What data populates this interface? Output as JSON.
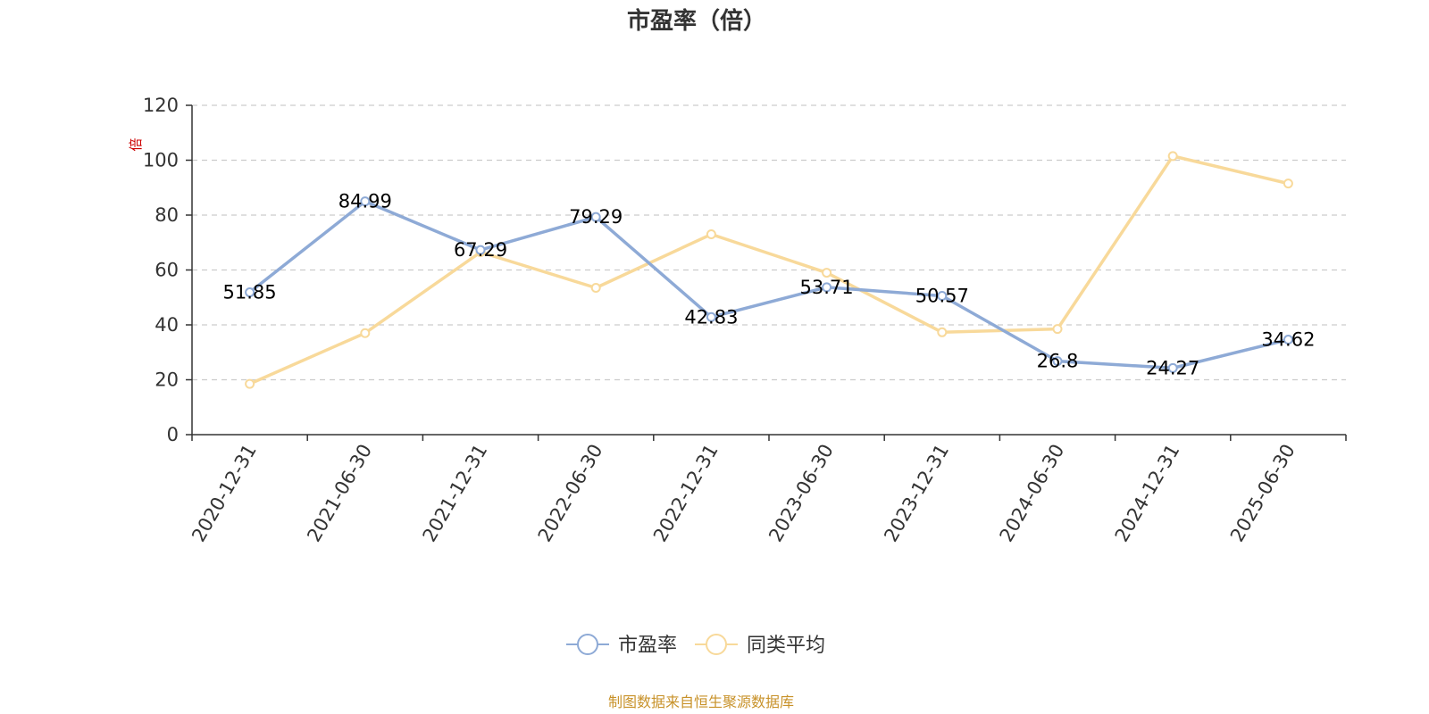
{
  "chart_data": {
    "type": "line",
    "title": "市盈率（倍）",
    "unit": "倍",
    "categories": [
      "2020-12-31",
      "2021-06-30",
      "2021-12-31",
      "2022-06-30",
      "2022-12-31",
      "2023-06-30",
      "2023-12-31",
      "2024-06-30",
      "2024-12-31",
      "2025-06-30"
    ],
    "ylim": [
      0,
      120
    ],
    "yticks": [
      0,
      20,
      40,
      60,
      80,
      100,
      120
    ],
    "grid": true,
    "legend_position": "bottom-center",
    "series": [
      {
        "name": "市盈率",
        "color": "#8eaad6",
        "values": [
          51.85,
          84.99,
          67.29,
          79.29,
          42.83,
          53.71,
          50.57,
          26.8,
          24.27,
          34.62
        ],
        "labels": [
          "51.85",
          "84.99",
          "67.29",
          "79.29",
          "42.83",
          "53.71",
          "50.57",
          "26.8",
          "24.27",
          "34.62"
        ]
      },
      {
        "name": "同类平均",
        "color": "#f8d99a",
        "values": [
          18.5,
          37.0,
          66.5,
          53.5,
          73.0,
          59.0,
          37.3,
          38.5,
          101.5,
          91.5
        ]
      }
    ]
  },
  "source": "制图数据来自恒生聚源数据库"
}
